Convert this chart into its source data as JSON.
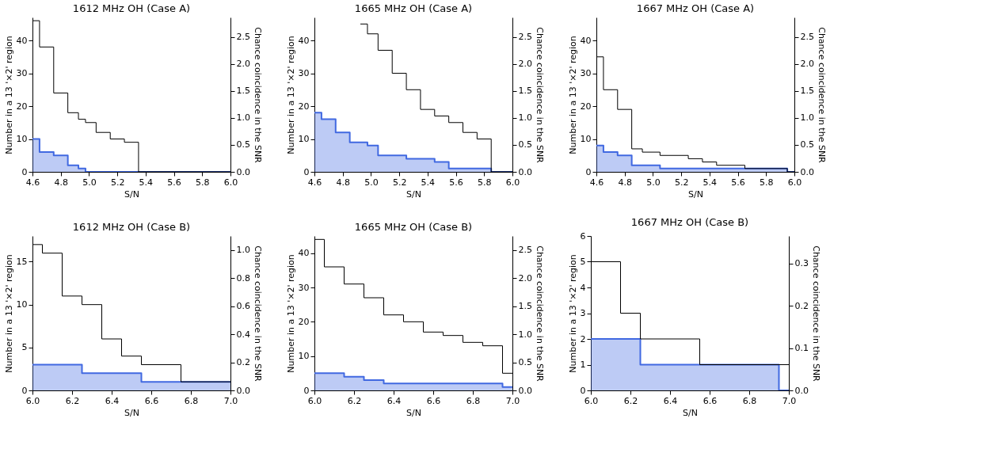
{
  "chart_data": [
    {
      "type": "step",
      "title": "1612 MHz OH (Case A)",
      "xlabel": "S/N",
      "ylabel": "Number in a 13 '×2' region",
      "y2label": "Chance coincidence in the SNR",
      "xlim": [
        4.6,
        6.0
      ],
      "xticks": [
        4.6,
        4.8,
        {
          "value": 5,
          "label": "5.0"
        },
        5.2,
        5.4,
        5.6,
        5.8,
        {
          "value": 6,
          "label": "6.0"
        }
      ],
      "ylim": [
        0,
        47
      ],
      "yticks": [
        0,
        10,
        20,
        30,
        40
      ],
      "y2lim": [
        0,
        2.86
      ],
      "y2ticks": [
        {
          "value": 0,
          "label": "0.0"
        },
        0.5,
        {
          "value": 1,
          "label": "1.0"
        },
        1.5,
        {
          "value": 2,
          "label": "2.0"
        },
        2.5
      ],
      "series": [
        {
          "type": "step",
          "color": "#000000",
          "x": [
            4.6,
            4.65,
            4.75,
            4.85,
            4.925,
            4.975,
            5.05,
            5.15,
            5.25,
            5.35,
            6.0
          ],
          "values": [
            46,
            38,
            24,
            18,
            16,
            15,
            12,
            10,
            9,
            0,
            0
          ]
        },
        {
          "type": "area",
          "color": "#4169e1",
          "x": [
            4.6,
            4.65,
            4.65,
            4.75,
            4.75,
            4.85,
            4.85,
            4.925,
            4.925,
            4.975,
            4.975,
            6.0
          ],
          "values": [
            10,
            10,
            6,
            6,
            5,
            5,
            2,
            2,
            1,
            1,
            0,
            0
          ]
        }
      ]
    },
    {
      "type": "step",
      "title": "1665 MHz OH (Case A)",
      "xlabel": "S/N",
      "ylabel": "Number in a 13 '×2' region",
      "y2label": "Chance coincidence in the SNR",
      "xlim": [
        4.6,
        6.0
      ],
      "xticks": [
        4.6,
        4.8,
        {
          "value": 5,
          "label": "5.0"
        },
        5.2,
        5.4,
        5.6,
        5.8,
        {
          "value": 6,
          "label": "6.0"
        }
      ],
      "ylim": [
        0,
        47
      ],
      "yticks": [
        0,
        10,
        20,
        30,
        40
      ],
      "y2lim": [
        0,
        2.86
      ],
      "y2ticks": [
        {
          "value": 0,
          "label": "0.0"
        },
        0.5,
        {
          "value": 1,
          "label": "1.0"
        },
        1.5,
        {
          "value": 2,
          "label": "2.0"
        },
        2.5
      ],
      "series": [
        {
          "type": "step",
          "color": "#000000",
          "x": [
            4.925,
            4.975,
            5.05,
            5.15,
            5.25,
            5.35,
            5.45,
            5.55,
            5.65,
            5.75,
            5.85,
            6.0
          ],
          "values": [
            45,
            42,
            37,
            30,
            25,
            19,
            17,
            15,
            12,
            10,
            0,
            0
          ]
        },
        {
          "type": "area",
          "color": "#4169e1",
          "x": [
            4.6,
            4.65,
            4.65,
            4.75,
            4.75,
            4.85,
            4.85,
            4.975,
            4.975,
            5.05,
            5.05,
            5.25,
            5.25,
            5.45,
            5.45,
            5.55,
            5.55,
            5.85,
            5.85,
            6.0
          ],
          "values": [
            18,
            18,
            16,
            16,
            12,
            12,
            9,
            9,
            8,
            8,
            5,
            5,
            4,
            4,
            3,
            3,
            1,
            1,
            0,
            0
          ]
        }
      ]
    },
    {
      "type": "step",
      "title": "1667 MHz OH (Case A)",
      "xlabel": "S/N",
      "ylabel": "Number in a 13 '×2' region",
      "y2label": "Chance coincidence in the SNR",
      "xlim": [
        4.6,
        6.0
      ],
      "xticks": [
        4.6,
        4.8,
        {
          "value": 5,
          "label": "5.0"
        },
        5.2,
        5.4,
        5.6,
        5.8,
        {
          "value": 6,
          "label": "6.0"
        }
      ],
      "ylim": [
        0,
        47
      ],
      "yticks": [
        0,
        10,
        20,
        30,
        40
      ],
      "y2lim": [
        0,
        2.86
      ],
      "y2ticks": [
        {
          "value": 0,
          "label": "0.0"
        },
        0.5,
        {
          "value": 1,
          "label": "1.0"
        },
        1.5,
        {
          "value": 2,
          "label": "2.0"
        },
        2.5
      ],
      "series": [
        {
          "type": "step",
          "color": "#000000",
          "x": [
            4.6,
            4.65,
            4.75,
            4.85,
            4.925,
            5.05,
            5.25,
            5.35,
            5.45,
            5.65,
            5.95,
            6.0
          ],
          "values": [
            35,
            25,
            19,
            7,
            6,
            5,
            4,
            3,
            2,
            1,
            0,
            0
          ]
        },
        {
          "type": "area",
          "color": "#4169e1",
          "x": [
            4.6,
            4.65,
            4.65,
            4.75,
            4.75,
            4.85,
            4.85,
            5.05,
            5.05,
            5.95,
            5.95,
            6.0
          ],
          "values": [
            8,
            8,
            6,
            6,
            5,
            5,
            2,
            2,
            1,
            1,
            0,
            0
          ]
        }
      ]
    },
    {
      "type": "step",
      "title": "1612 MHz OH (Case B)",
      "xlabel": "S/N",
      "ylabel": "Number in a 13 '×2' region",
      "y2label": "Chance coincidence in the SNR",
      "xlim": [
        6.0,
        7.0
      ],
      "xticks": [
        {
          "value": 6,
          "label": "6.0"
        },
        6.2,
        6.4,
        6.6,
        6.8,
        {
          "value": 7,
          "label": "7.0"
        }
      ],
      "ylim": [
        0,
        18
      ],
      "yticks": [
        0,
        5,
        10,
        15
      ],
      "y2lim": [
        0,
        1.1
      ],
      "y2ticks": [
        {
          "value": 0,
          "label": "0.0"
        },
        0.2,
        0.4,
        0.6,
        0.8,
        {
          "value": 1,
          "label": "1.0"
        }
      ],
      "series": [
        {
          "type": "step",
          "color": "#000000",
          "x": [
            6.0,
            6.05,
            6.15,
            6.25,
            6.35,
            6.45,
            6.55,
            6.75,
            7.0
          ],
          "values": [
            17,
            16,
            11,
            10,
            6,
            4,
            3,
            1,
            1
          ]
        },
        {
          "type": "area",
          "color": "#4169e1",
          "x": [
            6.0,
            6.25,
            6.25,
            6.55,
            6.55,
            7.0
          ],
          "values": [
            3,
            3,
            2,
            2,
            1,
            1
          ]
        }
      ]
    },
    {
      "type": "step",
      "title": "1665 MHz OH (Case B)",
      "xlabel": "S/N",
      "ylabel": "Number in a 13 '×2' region",
      "y2label": "Chance coincidence in the SNR",
      "xlim": [
        6.0,
        7.0
      ],
      "xticks": [
        {
          "value": 6,
          "label": "6.0"
        },
        6.2,
        6.4,
        6.6,
        6.8,
        {
          "value": 7,
          "label": "7.0"
        }
      ],
      "ylim": [
        0,
        45
      ],
      "yticks": [
        0,
        10,
        20,
        30,
        40
      ],
      "y2lim": [
        0,
        2.75
      ],
      "y2ticks": [
        {
          "value": 0,
          "label": "0.0"
        },
        0.5,
        {
          "value": 1,
          "label": "1.0"
        },
        1.5,
        {
          "value": 2,
          "label": "2.0"
        },
        2.5
      ],
      "series": [
        {
          "type": "step",
          "color": "#000000",
          "x": [
            6.0,
            6.05,
            6.15,
            6.25,
            6.35,
            6.45,
            6.55,
            6.65,
            6.75,
            6.85,
            6.95,
            7.0
          ],
          "values": [
            44,
            36,
            31,
            27,
            22,
            20,
            17,
            16,
            14,
            13,
            5,
            5
          ]
        },
        {
          "type": "area",
          "color": "#4169e1",
          "x": [
            6.0,
            6.15,
            6.15,
            6.25,
            6.25,
            6.35,
            6.35,
            6.95,
            6.95,
            7.0
          ],
          "values": [
            5,
            5,
            4,
            4,
            3,
            3,
            2,
            2,
            1,
            1
          ]
        }
      ]
    },
    {
      "type": "step",
      "title": "1667 MHz OH (Case B)",
      "xlabel": "S/N",
      "ylabel": "Number in a 13 '×2' region",
      "y2label": "Chance coincidence in the SNR",
      "xlim": [
        6.0,
        7.0
      ],
      "xticks": [
        {
          "value": 6,
          "label": "6.0"
        },
        6.2,
        6.4,
        6.6,
        6.8,
        {
          "value": 7,
          "label": "7.0"
        }
      ],
      "ylim": [
        0,
        6
      ],
      "yticks": [
        0,
        1,
        2,
        3,
        4,
        5,
        6
      ],
      "y2lim": [
        0,
        0.365
      ],
      "y2ticks": [
        {
          "value": 0,
          "label": "0.0"
        },
        0.1,
        0.2,
        0.3
      ],
      "series": [
        {
          "type": "step",
          "color": "#000000",
          "x": [
            6.0,
            6.15,
            6.25,
            6.55,
            7.0
          ],
          "values": [
            5,
            3,
            2,
            1,
            1
          ]
        },
        {
          "type": "area",
          "color": "#4169e1",
          "x": [
            6.0,
            6.25,
            6.25,
            6.95,
            6.95,
            7.0
          ],
          "values": [
            2,
            2,
            1,
            1,
            0,
            0
          ]
        }
      ]
    }
  ]
}
